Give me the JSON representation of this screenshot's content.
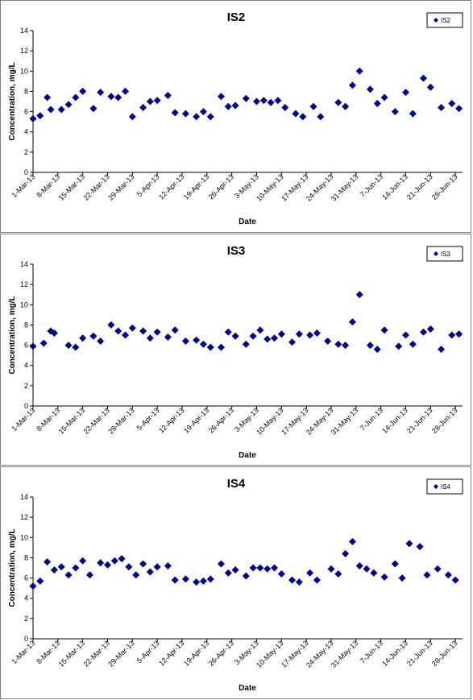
{
  "colors": {
    "marker": "#00008B",
    "axis": "#000000",
    "border": "#808080"
  },
  "chart_data": [
    {
      "type": "scatter",
      "title": "IS2",
      "xlabel": "Date",
      "ylabel": "Concentration, mg/L",
      "ylim": [
        0,
        14
      ],
      "yticks": [
        "0",
        "2",
        "4",
        "6",
        "8",
        "10",
        "12",
        "14"
      ],
      "xlim": [
        "2013-03-01",
        "2013-06-30"
      ],
      "xticks": [
        "1-Mar-13",
        "8-Mar-13",
        "15-Mar-13",
        "22-Mar-13",
        "29-Mar-13",
        "5-Apr-13",
        "12-Apr-13",
        "19-Apr-13",
        "26-Apr-13",
        "3-May-13",
        "10-May-13",
        "17-May-13",
        "24-May-13",
        "31-May-13",
        "7-Jun-13",
        "14-Jun-13",
        "21-Jun-13",
        "28-Jun-13"
      ],
      "grid": false,
      "legend_position": "top-right",
      "series": [
        {
          "name": "IS2",
          "x": [
            "2013-03-01",
            "2013-03-03",
            "2013-03-05",
            "2013-03-06",
            "2013-03-09",
            "2013-03-11",
            "2013-03-13",
            "2013-03-15",
            "2013-03-18",
            "2013-03-20",
            "2013-03-23",
            "2013-03-25",
            "2013-03-27",
            "2013-03-29",
            "2013-04-01",
            "2013-04-03",
            "2013-04-05",
            "2013-04-08",
            "2013-04-10",
            "2013-04-13",
            "2013-04-16",
            "2013-04-18",
            "2013-04-20",
            "2013-04-23",
            "2013-04-25",
            "2013-04-27",
            "2013-04-30",
            "2013-05-03",
            "2013-05-05",
            "2013-05-07",
            "2013-05-09",
            "2013-05-11",
            "2013-05-14",
            "2013-05-16",
            "2013-05-19",
            "2013-05-21",
            "2013-05-26",
            "2013-05-28",
            "2013-05-30",
            "2013-06-01",
            "2013-06-04",
            "2013-06-06",
            "2013-06-08",
            "2013-06-11",
            "2013-06-14",
            "2013-06-16",
            "2013-06-19",
            "2013-06-21",
            "2013-06-24",
            "2013-06-27",
            "2013-06-29"
          ],
          "y": [
            5.3,
            5.6,
            7.4,
            6.2,
            6.2,
            6.7,
            7.4,
            8.0,
            6.3,
            7.9,
            7.5,
            7.4,
            8.0,
            5.5,
            6.4,
            7.0,
            7.1,
            7.6,
            5.9,
            5.8,
            5.5,
            6.0,
            5.5,
            7.5,
            6.5,
            6.6,
            7.3,
            7.0,
            7.1,
            6.9,
            7.1,
            6.4,
            5.8,
            5.5,
            6.5,
            5.5,
            6.9,
            6.5,
            8.6,
            10.0,
            8.2,
            6.8,
            7.4,
            6.0,
            7.9,
            5.8,
            9.3,
            8.4,
            6.4,
            6.8,
            6.3
          ]
        }
      ]
    },
    {
      "type": "scatter",
      "title": "IS3",
      "xlabel": "Date",
      "ylabel": "Concentration, mg/L",
      "ylim": [
        0,
        14
      ],
      "yticks": [
        "0",
        "2",
        "4",
        "6",
        "8",
        "10",
        "12",
        "14"
      ],
      "xlim": [
        "2013-03-01",
        "2013-06-30"
      ],
      "xticks": [
        "1-Mar-13",
        "8-Mar-13",
        "15-Mar-13",
        "22-Mar-13",
        "29-Mar-13",
        "5-Apr-13",
        "12-Apr-13",
        "19-Apr-13",
        "26-Apr-13",
        "3-May-13",
        "10-May-13",
        "17-May-13",
        "24-May-13",
        "31-May-13",
        "7-Jun-13",
        "14-Jun-13",
        "21-Jun-13",
        "28-Jun-13"
      ],
      "grid": false,
      "legend_position": "top-right",
      "series": [
        {
          "name": "IS3",
          "x": [
            "2013-03-01",
            "2013-03-04",
            "2013-03-06",
            "2013-03-07",
            "2013-03-11",
            "2013-03-13",
            "2013-03-15",
            "2013-03-18",
            "2013-03-20",
            "2013-03-23",
            "2013-03-25",
            "2013-03-27",
            "2013-03-29",
            "2013-04-01",
            "2013-04-03",
            "2013-04-05",
            "2013-04-08",
            "2013-04-10",
            "2013-04-13",
            "2013-04-16",
            "2013-04-18",
            "2013-04-20",
            "2013-04-23",
            "2013-04-25",
            "2013-04-27",
            "2013-04-30",
            "2013-05-02",
            "2013-05-04",
            "2013-05-06",
            "2013-05-08",
            "2013-05-10",
            "2013-05-13",
            "2013-05-15",
            "2013-05-18",
            "2013-05-20",
            "2013-05-23",
            "2013-05-26",
            "2013-05-28",
            "2013-05-30",
            "2013-06-01",
            "2013-06-04",
            "2013-06-06",
            "2013-06-08",
            "2013-06-12",
            "2013-06-14",
            "2013-06-16",
            "2013-06-19",
            "2013-06-21",
            "2013-06-24",
            "2013-06-27",
            "2013-06-29"
          ],
          "y": [
            5.9,
            6.2,
            7.4,
            7.2,
            6.0,
            5.8,
            6.7,
            6.9,
            6.4,
            8.0,
            7.4,
            7.0,
            7.7,
            7.4,
            6.7,
            7.3,
            6.8,
            7.5,
            6.4,
            6.5,
            6.1,
            5.8,
            5.8,
            7.3,
            6.9,
            6.1,
            6.9,
            7.5,
            6.6,
            6.7,
            7.1,
            6.3,
            7.1,
            7.0,
            7.2,
            6.4,
            6.1,
            6.0,
            8.3,
            11.0,
            6.0,
            5.6,
            7.5,
            5.9,
            7.0,
            6.1,
            7.3,
            7.6,
            5.6,
            7.0,
            7.1
          ]
        }
      ]
    },
    {
      "type": "scatter",
      "title": "IS4",
      "xlabel": "Date",
      "ylabel": "Concentration, mg/L",
      "ylim": [
        0,
        14
      ],
      "yticks": [
        "0",
        "2",
        "4",
        "6",
        "8",
        "10",
        "12",
        "14"
      ],
      "xlim": [
        "2013-03-01",
        "2013-06-30"
      ],
      "xticks": [
        "1-Mar-13",
        "8-Mar-13",
        "15-Mar-13",
        "22-Mar-13",
        "29-Mar-13",
        "5-Apr-13",
        "12-Apr-13",
        "19-Apr-13",
        "26-Apr-13",
        "3-May-13",
        "10-May-13",
        "17-May-13",
        "24-May-13",
        "31-May-13",
        "7-Jun-13",
        "14-Jun-13",
        "21-Jun-13",
        "28-Jun-13"
      ],
      "grid": false,
      "legend_position": "top-right",
      "series": [
        {
          "name": "IS4",
          "x": [
            "2013-03-01",
            "2013-03-03",
            "2013-03-05",
            "2013-03-07",
            "2013-03-09",
            "2013-03-11",
            "2013-03-13",
            "2013-03-15",
            "2013-03-17",
            "2013-03-20",
            "2013-03-22",
            "2013-03-24",
            "2013-03-26",
            "2013-03-28",
            "2013-03-30",
            "2013-04-01",
            "2013-04-03",
            "2013-04-05",
            "2013-04-08",
            "2013-04-10",
            "2013-04-13",
            "2013-04-16",
            "2013-04-18",
            "2013-04-20",
            "2013-04-23",
            "2013-04-25",
            "2013-04-27",
            "2013-04-30",
            "2013-05-02",
            "2013-05-04",
            "2013-05-06",
            "2013-05-08",
            "2013-05-10",
            "2013-05-13",
            "2013-05-15",
            "2013-05-18",
            "2013-05-20",
            "2013-05-24",
            "2013-05-26",
            "2013-05-28",
            "2013-05-30",
            "2013-06-01",
            "2013-06-03",
            "2013-06-05",
            "2013-06-08",
            "2013-06-11",
            "2013-06-13",
            "2013-06-15",
            "2013-06-18",
            "2013-06-20",
            "2013-06-23",
            "2013-06-26",
            "2013-06-28"
          ],
          "y": [
            5.2,
            5.7,
            7.6,
            6.8,
            7.1,
            6.3,
            7.0,
            7.7,
            6.3,
            7.5,
            7.3,
            7.7,
            7.9,
            7.1,
            6.3,
            7.4,
            6.6,
            7.1,
            7.2,
            5.8,
            5.9,
            5.6,
            5.7,
            5.9,
            7.4,
            6.5,
            6.8,
            6.2,
            7.0,
            7.0,
            6.9,
            7.0,
            6.4,
            5.8,
            5.6,
            6.5,
            5.8,
            6.9,
            6.4,
            8.4,
            9.6,
            7.2,
            6.9,
            6.5,
            6.1,
            7.4,
            6.0,
            9.4,
            9.1,
            6.3,
            6.9,
            6.3,
            5.8
          ]
        }
      ]
    }
  ]
}
